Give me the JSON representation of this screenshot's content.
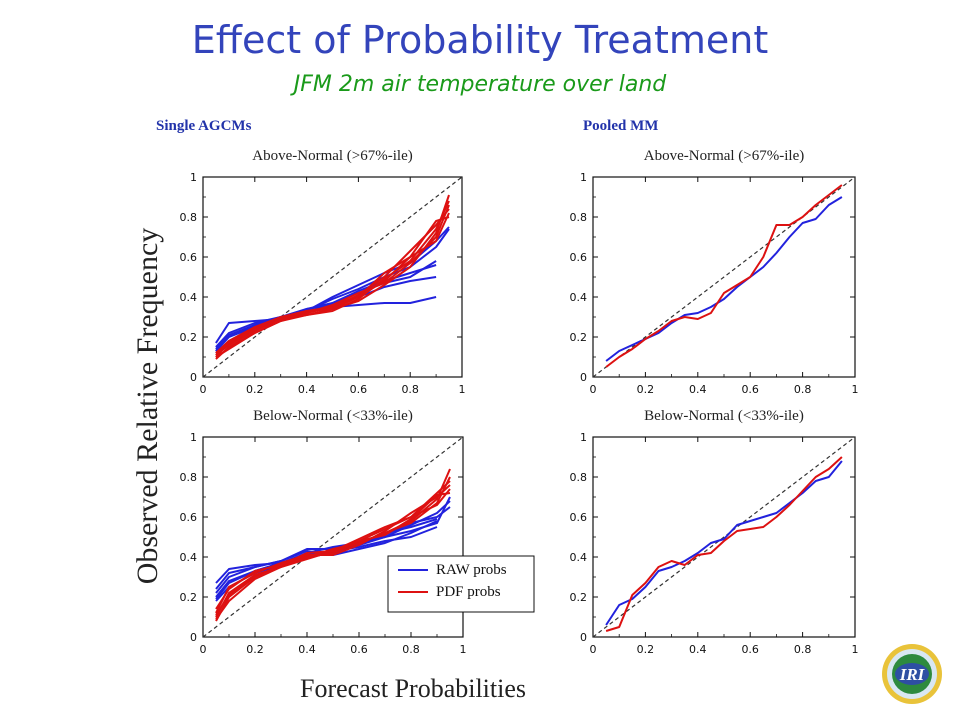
{
  "slide": {
    "title": "Effect of Probability Treatment",
    "subtitle": "JFM 2m air temperature over land",
    "col_left": "Single AGCMs",
    "col_right": "Pooled MM",
    "ylabel": "Observed Relative Frequency",
    "xlabel": "Forecast Probabilities",
    "logo_text": "IRI"
  },
  "colors": {
    "raw": "#2222dd",
    "pdf": "#dd1111",
    "diag": "#333333"
  },
  "legend": [
    {
      "label": "RAW probs",
      "color": "#2222dd"
    },
    {
      "label": "PDF probs",
      "color": "#dd1111"
    }
  ],
  "chart_data": [
    {
      "type": "line",
      "title": "Above-Normal (>67%-ile)",
      "xlim": [
        0,
        1
      ],
      "ylim": [
        0,
        1
      ],
      "xticks": [
        "0",
        "0.2",
        "0.4",
        "0.6",
        "0.8",
        "1"
      ],
      "yticks": [
        "0",
        "0.2",
        "0.4",
        "0.6",
        "0.8",
        "1"
      ],
      "diagonal": true,
      "series": [
        {
          "group": "raw",
          "x": [
            0.05,
            0.1,
            0.2,
            0.3,
            0.4,
            0.5,
            0.6,
            0.7,
            0.8,
            0.9
          ],
          "y": [
            0.17,
            0.27,
            0.28,
            0.29,
            0.33,
            0.35,
            0.36,
            0.37,
            0.37,
            0.4
          ]
        },
        {
          "group": "raw",
          "x": [
            0.05,
            0.1,
            0.2,
            0.3,
            0.4,
            0.5,
            0.6,
            0.7,
            0.8,
            0.9
          ],
          "y": [
            0.15,
            0.22,
            0.27,
            0.3,
            0.34,
            0.36,
            0.4,
            0.45,
            0.48,
            0.5
          ]
        },
        {
          "group": "raw",
          "x": [
            0.05,
            0.1,
            0.2,
            0.3,
            0.4,
            0.5,
            0.6,
            0.7,
            0.8,
            0.9
          ],
          "y": [
            0.13,
            0.2,
            0.25,
            0.3,
            0.32,
            0.37,
            0.42,
            0.47,
            0.5,
            0.58
          ]
        },
        {
          "group": "raw",
          "x": [
            0.05,
            0.1,
            0.2,
            0.3,
            0.4,
            0.5,
            0.6,
            0.7,
            0.8,
            0.9,
            0.95
          ],
          "y": [
            0.12,
            0.18,
            0.25,
            0.29,
            0.33,
            0.39,
            0.44,
            0.5,
            0.55,
            0.65,
            0.74
          ]
        },
        {
          "group": "raw",
          "x": [
            0.05,
            0.1,
            0.2,
            0.3,
            0.4,
            0.5,
            0.6,
            0.7,
            0.8,
            0.9,
            0.95
          ],
          "y": [
            0.14,
            0.21,
            0.26,
            0.3,
            0.33,
            0.4,
            0.46,
            0.52,
            0.57,
            0.68,
            0.75
          ]
        },
        {
          "group": "raw",
          "x": [
            0.05,
            0.1,
            0.2,
            0.3,
            0.4,
            0.5,
            0.6,
            0.7,
            0.8,
            0.9
          ],
          "y": [
            0.13,
            0.2,
            0.26,
            0.29,
            0.34,
            0.37,
            0.43,
            0.48,
            0.52,
            0.56
          ]
        },
        {
          "group": "pdf",
          "x": [
            0.05,
            0.1,
            0.2,
            0.3,
            0.4,
            0.5,
            0.6,
            0.7,
            0.8,
            0.9,
            0.95
          ],
          "y": [
            0.1,
            0.17,
            0.24,
            0.29,
            0.32,
            0.35,
            0.4,
            0.48,
            0.6,
            0.78,
            0.8
          ]
        },
        {
          "group": "pdf",
          "x": [
            0.05,
            0.1,
            0.2,
            0.3,
            0.4,
            0.5,
            0.6,
            0.7,
            0.8,
            0.9,
            0.95
          ],
          "y": [
            0.09,
            0.15,
            0.22,
            0.28,
            0.31,
            0.34,
            0.38,
            0.46,
            0.55,
            0.72,
            0.91
          ]
        },
        {
          "group": "pdf",
          "x": [
            0.05,
            0.1,
            0.2,
            0.3,
            0.4,
            0.5,
            0.6,
            0.7,
            0.8,
            0.9,
            0.95
          ],
          "y": [
            0.11,
            0.16,
            0.23,
            0.29,
            0.33,
            0.35,
            0.41,
            0.5,
            0.63,
            0.76,
            0.84
          ]
        },
        {
          "group": "pdf",
          "x": [
            0.05,
            0.1,
            0.2,
            0.3,
            0.4,
            0.5,
            0.6,
            0.7,
            0.8,
            0.9,
            0.95
          ],
          "y": [
            0.12,
            0.18,
            0.25,
            0.3,
            0.33,
            0.34,
            0.4,
            0.52,
            0.6,
            0.68,
            0.82
          ]
        },
        {
          "group": "pdf",
          "x": [
            0.05,
            0.1,
            0.2,
            0.3,
            0.4,
            0.5,
            0.6,
            0.7,
            0.8,
            0.9,
            0.95
          ],
          "y": [
            0.1,
            0.14,
            0.22,
            0.28,
            0.32,
            0.36,
            0.42,
            0.47,
            0.57,
            0.7,
            0.86
          ]
        },
        {
          "group": "pdf",
          "x": [
            0.05,
            0.1,
            0.2,
            0.3,
            0.4,
            0.5,
            0.6,
            0.7,
            0.8,
            0.9,
            0.95
          ],
          "y": [
            0.11,
            0.17,
            0.24,
            0.29,
            0.31,
            0.33,
            0.39,
            0.49,
            0.58,
            0.74,
            0.88
          ]
        }
      ]
    },
    {
      "type": "line",
      "title": "Above-Normal (>67%-ile)",
      "xlim": [
        0,
        1
      ],
      "ylim": [
        0,
        1
      ],
      "xticks": [
        "0",
        "0.2",
        "0.4",
        "0.6",
        "0.8",
        "1"
      ],
      "yticks": [
        "0",
        "0.2",
        "0.4",
        "0.6",
        "0.8",
        "1"
      ],
      "diagonal": true,
      "series": [
        {
          "group": "raw",
          "x": [
            0.05,
            0.1,
            0.15,
            0.2,
            0.25,
            0.3,
            0.35,
            0.4,
            0.45,
            0.5,
            0.55,
            0.6,
            0.65,
            0.7,
            0.75,
            0.8,
            0.85,
            0.9,
            0.95
          ],
          "y": [
            0.08,
            0.13,
            0.16,
            0.19,
            0.22,
            0.27,
            0.31,
            0.32,
            0.35,
            0.39,
            0.45,
            0.5,
            0.55,
            0.62,
            0.7,
            0.77,
            0.79,
            0.86,
            0.9
          ]
        },
        {
          "group": "pdf",
          "x": [
            0.05,
            0.1,
            0.15,
            0.2,
            0.25,
            0.3,
            0.35,
            0.4,
            0.45,
            0.5,
            0.55,
            0.6,
            0.65,
            0.7,
            0.75,
            0.8,
            0.85,
            0.9,
            0.95
          ],
          "y": [
            0.05,
            0.1,
            0.14,
            0.19,
            0.23,
            0.28,
            0.3,
            0.29,
            0.32,
            0.42,
            0.46,
            0.5,
            0.6,
            0.76,
            0.76,
            0.8,
            0.86,
            0.91,
            0.96
          ]
        }
      ]
    },
    {
      "type": "line",
      "title": "Below-Normal (<33%-ile)",
      "xlim": [
        0,
        1
      ],
      "ylim": [
        0,
        1
      ],
      "xticks": [
        "0",
        "0.2",
        "0.4",
        "0.6",
        "0.8",
        "1"
      ],
      "yticks": [
        "0",
        "0.2",
        "0.4",
        "0.6",
        "0.8",
        "1"
      ],
      "diagonal": true,
      "series": [
        {
          "group": "raw",
          "x": [
            0.05,
            0.1,
            0.2,
            0.3,
            0.4,
            0.5,
            0.6,
            0.7,
            0.8,
            0.9,
            0.95
          ],
          "y": [
            0.27,
            0.34,
            0.36,
            0.37,
            0.42,
            0.45,
            0.47,
            0.5,
            0.53,
            0.57,
            0.7
          ]
        },
        {
          "group": "raw",
          "x": [
            0.05,
            0.1,
            0.2,
            0.3,
            0.4,
            0.5,
            0.6,
            0.7,
            0.8,
            0.9
          ],
          "y": [
            0.22,
            0.3,
            0.35,
            0.38,
            0.44,
            0.44,
            0.47,
            0.52,
            0.55,
            0.59
          ]
        },
        {
          "group": "raw",
          "x": [
            0.05,
            0.1,
            0.2,
            0.3,
            0.4,
            0.5,
            0.6,
            0.7,
            0.8,
            0.9,
            0.95
          ],
          "y": [
            0.2,
            0.28,
            0.33,
            0.37,
            0.4,
            0.42,
            0.46,
            0.5,
            0.56,
            0.62,
            0.68
          ]
        },
        {
          "group": "raw",
          "x": [
            0.05,
            0.1,
            0.2,
            0.3,
            0.4,
            0.5,
            0.6,
            0.7,
            0.8,
            0.9
          ],
          "y": [
            0.18,
            0.25,
            0.32,
            0.36,
            0.41,
            0.43,
            0.45,
            0.48,
            0.5,
            0.55
          ]
        },
        {
          "group": "raw",
          "x": [
            0.05,
            0.1,
            0.2,
            0.3,
            0.4,
            0.5,
            0.6,
            0.7,
            0.8,
            0.9
          ],
          "y": [
            0.24,
            0.32,
            0.35,
            0.38,
            0.43,
            0.41,
            0.44,
            0.47,
            0.52,
            0.58
          ]
        },
        {
          "group": "raw",
          "x": [
            0.05,
            0.1,
            0.2,
            0.3,
            0.4,
            0.5,
            0.6,
            0.7,
            0.8,
            0.9,
            0.95
          ],
          "y": [
            0.19,
            0.27,
            0.33,
            0.37,
            0.41,
            0.43,
            0.47,
            0.51,
            0.57,
            0.6,
            0.65
          ]
        },
        {
          "group": "pdf",
          "x": [
            0.05,
            0.1,
            0.2,
            0.3,
            0.4,
            0.5,
            0.6,
            0.7,
            0.8,
            0.9,
            0.95
          ],
          "y": [
            0.08,
            0.2,
            0.3,
            0.36,
            0.4,
            0.42,
            0.47,
            0.52,
            0.58,
            0.69,
            0.84
          ]
        },
        {
          "group": "pdf",
          "x": [
            0.05,
            0.1,
            0.2,
            0.3,
            0.4,
            0.5,
            0.6,
            0.7,
            0.8,
            0.9,
            0.95
          ],
          "y": [
            0.1,
            0.22,
            0.31,
            0.35,
            0.39,
            0.43,
            0.49,
            0.55,
            0.6,
            0.72,
            0.78
          ]
        },
        {
          "group": "pdf",
          "x": [
            0.05,
            0.1,
            0.2,
            0.3,
            0.4,
            0.5,
            0.6,
            0.7,
            0.8,
            0.9,
            0.95
          ],
          "y": [
            0.12,
            0.25,
            0.32,
            0.37,
            0.41,
            0.41,
            0.46,
            0.53,
            0.62,
            0.7,
            0.76
          ]
        },
        {
          "group": "pdf",
          "x": [
            0.05,
            0.1,
            0.2,
            0.3,
            0.4,
            0.5,
            0.6,
            0.7,
            0.8,
            0.9,
            0.95
          ],
          "y": [
            0.14,
            0.24,
            0.33,
            0.36,
            0.4,
            0.42,
            0.48,
            0.54,
            0.6,
            0.66,
            0.74
          ]
        },
        {
          "group": "pdf",
          "x": [
            0.05,
            0.1,
            0.2,
            0.3,
            0.4,
            0.5,
            0.6,
            0.7,
            0.8,
            0.9,
            0.95
          ],
          "y": [
            0.09,
            0.18,
            0.29,
            0.35,
            0.4,
            0.44,
            0.47,
            0.52,
            0.57,
            0.67,
            0.8
          ]
        },
        {
          "group": "pdf",
          "x": [
            0.05,
            0.1,
            0.2,
            0.3,
            0.4,
            0.5,
            0.6,
            0.7,
            0.8,
            0.9,
            0.95
          ],
          "y": [
            0.11,
            0.21,
            0.3,
            0.36,
            0.42,
            0.43,
            0.48,
            0.51,
            0.59,
            0.71,
            0.72
          ]
        }
      ]
    },
    {
      "type": "line",
      "title": "Below-Normal (<33%-ile)",
      "xlim": [
        0,
        1
      ],
      "ylim": [
        0,
        1
      ],
      "xticks": [
        "0",
        "0.2",
        "0.4",
        "0.6",
        "0.8",
        "1"
      ],
      "yticks": [
        "0",
        "0.2",
        "0.4",
        "0.6",
        "0.8",
        "1"
      ],
      "diagonal": true,
      "series": [
        {
          "group": "raw",
          "x": [
            0.05,
            0.1,
            0.15,
            0.2,
            0.25,
            0.3,
            0.35,
            0.4,
            0.45,
            0.5,
            0.55,
            0.6,
            0.65,
            0.7,
            0.75,
            0.8,
            0.85,
            0.9,
            0.95
          ],
          "y": [
            0.06,
            0.16,
            0.19,
            0.25,
            0.33,
            0.35,
            0.38,
            0.42,
            0.47,
            0.49,
            0.56,
            0.58,
            0.6,
            0.62,
            0.67,
            0.72,
            0.78,
            0.8,
            0.88
          ]
        },
        {
          "group": "pdf",
          "x": [
            0.05,
            0.1,
            0.15,
            0.2,
            0.25,
            0.3,
            0.35,
            0.4,
            0.45,
            0.5,
            0.55,
            0.6,
            0.65,
            0.7,
            0.75,
            0.8,
            0.85,
            0.9,
            0.95
          ],
          "y": [
            0.03,
            0.05,
            0.21,
            0.27,
            0.35,
            0.38,
            0.36,
            0.41,
            0.42,
            0.48,
            0.53,
            0.54,
            0.55,
            0.6,
            0.66,
            0.73,
            0.8,
            0.84,
            0.9
          ]
        }
      ]
    }
  ]
}
